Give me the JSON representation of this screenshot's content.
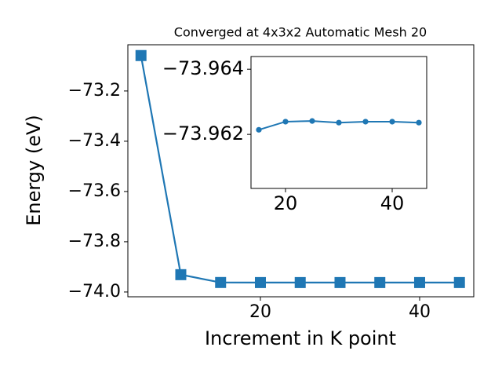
{
  "chart_data": [
    {
      "type": "line",
      "title": "Converged at 4x3x2 Automatic Mesh 20",
      "x_label": "Increment in K point",
      "y_label": "Energy (eV)",
      "x": [
        5,
        10,
        15,
        20,
        25,
        30,
        35,
        40,
        45
      ],
      "series": [
        {
          "color": "#1f77b4",
          "marker": "square",
          "values": [
            -73.059,
            -73.931,
            -73.96214,
            -73.96239,
            -73.96241,
            -73.96236,
            -73.96239,
            -73.96239,
            -73.96236
          ]
        }
      ],
      "xlim": [
        3.35,
        46.8
      ],
      "xticks": [
        20,
        40
      ],
      "ylim": [
        -74.019,
        -73.016
      ],
      "yticks": [
        {
          "value": -74.0,
          "label": "−74.0"
        },
        {
          "value": -73.8,
          "label": "−73.8"
        },
        {
          "value": -73.6,
          "label": "−73.6"
        },
        {
          "value": -73.4,
          "label": "−73.4"
        },
        {
          "value": -73.2,
          "label": "−73.2"
        }
      ]
    },
    {
      "type": "line",
      "x": [
        15,
        20,
        25,
        30,
        35,
        40,
        45
      ],
      "series": [
        {
          "color": "#1f77b4",
          "marker": "circle",
          "values": [
            -73.96214,
            -73.96239,
            -73.96241,
            -73.96236,
            -73.96239,
            -73.96239,
            -73.96236
          ]
        }
      ],
      "xlim": [
        13.53,
        46.47
      ],
      "xticks": [
        20,
        40
      ],
      "ylim": [
        -73.96034,
        -73.96439
      ],
      "yticks": [
        {
          "value": -73.962,
          "label": "−73.962"
        },
        {
          "value": -73.964,
          "label": "−73.964"
        }
      ]
    }
  ]
}
